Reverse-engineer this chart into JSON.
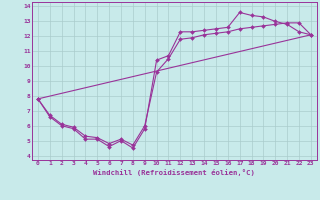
{
  "bg_color": "#c8eaea",
  "line_color": "#993399",
  "grid_color": "#aacccc",
  "xlabel": "Windchill (Refroidissement éolien,°C)",
  "xlim": [
    -0.5,
    23.5
  ],
  "ylim": [
    3.7,
    14.3
  ],
  "yticks": [
    4,
    5,
    6,
    7,
    8,
    9,
    10,
    11,
    12,
    13,
    14
  ],
  "xticks": [
    0,
    1,
    2,
    3,
    4,
    5,
    6,
    7,
    8,
    9,
    10,
    11,
    12,
    13,
    14,
    15,
    16,
    17,
    18,
    19,
    20,
    21,
    22,
    23
  ],
  "series": [
    {
      "x": [
        0,
        1,
        2,
        3,
        4,
        5,
        6,
        7,
        8,
        9,
        10,
        11,
        12,
        13,
        14,
        15,
        16,
        17,
        18,
        19,
        20,
        21,
        22,
        23
      ],
      "y": [
        7.8,
        6.6,
        6.0,
        5.8,
        5.1,
        5.1,
        4.6,
        5.0,
        4.5,
        5.8,
        10.4,
        10.7,
        12.3,
        12.3,
        12.4,
        12.5,
        12.6,
        13.6,
        13.4,
        13.3,
        13.0,
        12.8,
        12.3,
        12.1
      ],
      "marker": "D",
      "markersize": 2.0
    },
    {
      "x": [
        0,
        1,
        2,
        3,
        4,
        5,
        6,
        7,
        8,
        9,
        10,
        11,
        12,
        13,
        14,
        15,
        16,
        17,
        18,
        19,
        20,
        21,
        22,
        23
      ],
      "y": [
        7.8,
        6.7,
        6.1,
        5.9,
        5.3,
        5.2,
        4.8,
        5.1,
        4.7,
        6.0,
        9.6,
        10.5,
        11.8,
        11.9,
        12.1,
        12.2,
        12.3,
        12.5,
        12.6,
        12.7,
        12.8,
        12.9,
        12.9,
        12.1
      ],
      "marker": "D",
      "markersize": 2.0
    },
    {
      "x": [
        0,
        23
      ],
      "y": [
        7.8,
        12.1
      ],
      "marker": null,
      "markersize": 0
    }
  ],
  "tick_fontsize": 4.5,
  "xlabel_fontsize": 5.2,
  "linewidth": 0.8
}
